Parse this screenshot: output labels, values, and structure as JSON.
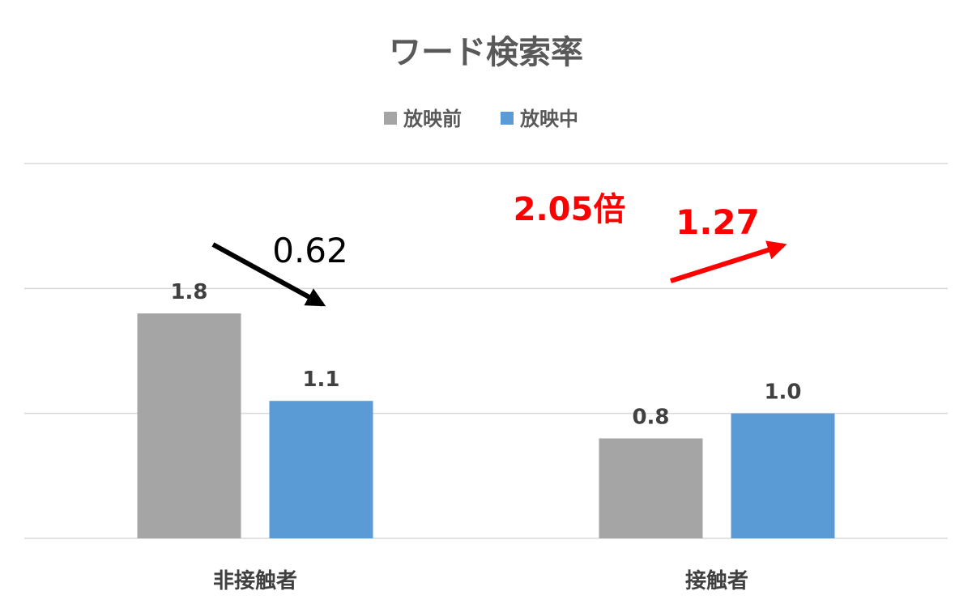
{
  "chart_data": {
    "type": "bar",
    "title": "ワード検索率",
    "categories": [
      "非接触者",
      "接触者"
    ],
    "series": [
      {
        "name": "放映前",
        "values": [
          1.8,
          0.8
        ],
        "labels": [
          "1.8",
          "0.8"
        ],
        "color": "#a5a5a5"
      },
      {
        "name": "放映中",
        "values": [
          1.1,
          1.0
        ],
        "labels": [
          "1.1",
          "1.0"
        ],
        "color": "#5b9bd5"
      }
    ],
    "ylim": [
      0,
      3
    ],
    "grid": true,
    "legend": "top-center",
    "annotations": [
      {
        "text": "0.62",
        "color": "#000000",
        "category": 0
      },
      {
        "text": "2.05倍",
        "color": "#ff0000",
        "category": 1
      },
      {
        "text": "1.27",
        "color": "#ff0000",
        "category": 1
      }
    ]
  }
}
